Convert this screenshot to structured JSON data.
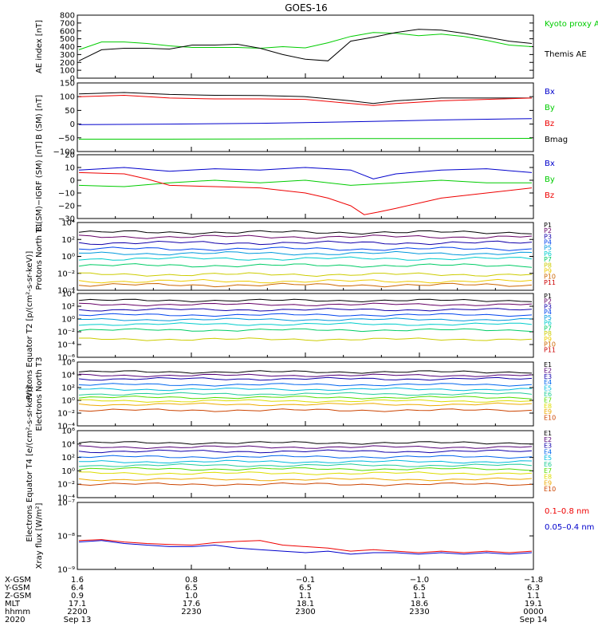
{
  "title": "GOES-16",
  "colors": {
    "black": "#000000",
    "red": "#ee0000",
    "green": "#00cc00",
    "blue": "#0000cc",
    "p": [
      "#000000",
      "#660066",
      "#1100aa",
      "#0044ee",
      "#0099dd",
      "#00cccc",
      "#00cc66",
      "#cccc00",
      "#eecc00",
      "#cc6600",
      "#cc0000"
    ],
    "e": [
      "#000000",
      "#550077",
      "#1100aa",
      "#0066ee",
      "#00bbdd",
      "#22cc99",
      "#55dd00",
      "#dddd00",
      "#eeaa00",
      "#cc4400",
      "#aa0000"
    ]
  },
  "chart_data": [
    {
      "type": "line",
      "ylabel": "AE index [nT]",
      "ylim": [
        0,
        800
      ],
      "yticks": [
        "800",
        "700",
        "600",
        "500",
        "400",
        "300",
        "200",
        "100",
        "0"
      ],
      "legend": [
        "Kyoto proxy AE",
        "Themis AE"
      ],
      "series": [
        {
          "name": "Kyoto proxy AE",
          "color": "green",
          "x": [
            0,
            0.05,
            0.1,
            0.15,
            0.2,
            0.25,
            0.3,
            0.35,
            0.4,
            0.45,
            0.5,
            0.55,
            0.6,
            0.65,
            0.7,
            0.75,
            0.8,
            0.85,
            0.9,
            0.95,
            1.0
          ],
          "y": [
            360,
            460,
            460,
            440,
            410,
            390,
            390,
            390,
            380,
            400,
            385,
            450,
            530,
            580,
            570,
            540,
            560,
            530,
            480,
            420,
            400
          ]
        },
        {
          "name": "Themis AE",
          "color": "black",
          "x": [
            0,
            0.05,
            0.1,
            0.15,
            0.2,
            0.25,
            0.3,
            0.35,
            0.4,
            0.45,
            0.5,
            0.55,
            0.6,
            0.65,
            0.7,
            0.75,
            0.8,
            0.85,
            0.9,
            0.95,
            1.0
          ],
          "y": [
            220,
            360,
            380,
            380,
            370,
            420,
            420,
            430,
            380,
            300,
            240,
            220,
            470,
            520,
            580,
            620,
            610,
            570,
            520,
            470,
            440
          ]
        }
      ]
    },
    {
      "type": "line",
      "ylabel": "B (SM) [nT]",
      "ylim": [
        -100,
        150
      ],
      "yticks": [
        "150",
        "100",
        "50",
        "0",
        "−50",
        "−100"
      ],
      "legend": [
        "Bx",
        "By",
        "Bz",
        "Bmag"
      ],
      "series": [
        {
          "name": "Bmag",
          "color": "black",
          "x": [
            0,
            0.1,
            0.2,
            0.3,
            0.4,
            0.5,
            0.6,
            0.65,
            0.7,
            0.8,
            0.9,
            1.0
          ],
          "y": [
            110,
            115,
            108,
            105,
            104,
            100,
            85,
            75,
            85,
            95,
            95,
            95
          ]
        },
        {
          "name": "Bz",
          "color": "red",
          "x": [
            0,
            0.1,
            0.2,
            0.3,
            0.4,
            0.5,
            0.6,
            0.65,
            0.7,
            0.8,
            0.9,
            1.0
          ],
          "y": [
            100,
            105,
            95,
            92,
            92,
            90,
            75,
            68,
            75,
            85,
            90,
            95
          ]
        },
        {
          "name": "Bx",
          "color": "blue",
          "x": [
            0,
            0.2,
            0.4,
            0.6,
            0.8,
            1.0
          ],
          "y": [
            -2,
            0,
            3,
            8,
            15,
            20
          ]
        },
        {
          "name": "By",
          "color": "green",
          "x": [
            0,
            0.2,
            0.4,
            0.6,
            0.8,
            1.0
          ],
          "y": [
            -55,
            -55,
            -54,
            -53,
            -53,
            -52
          ]
        }
      ]
    },
    {
      "type": "line",
      "ylabel": "B (SM)−IGRF (SM) [nT]",
      "ylim": [
        -30,
        20
      ],
      "yticks": [
        "20",
        "10",
        "0",
        "−10",
        "−20",
        "−30"
      ],
      "legend": [
        "Bx",
        "By",
        "Bz"
      ],
      "series": [
        {
          "name": "Bx",
          "color": "blue",
          "x": [
            0,
            0.1,
            0.2,
            0.3,
            0.4,
            0.5,
            0.6,
            0.65,
            0.7,
            0.8,
            0.9,
            1.0
          ],
          "y": [
            8,
            10,
            7,
            9,
            8,
            10,
            8,
            1,
            5,
            8,
            9,
            6
          ]
        },
        {
          "name": "By",
          "color": "green",
          "x": [
            0,
            0.1,
            0.2,
            0.3,
            0.4,
            0.5,
            0.6,
            0.7,
            0.8,
            0.9,
            1.0
          ],
          "y": [
            -4,
            -5,
            -2,
            0,
            -2,
            0,
            -4,
            -2,
            0,
            -2,
            -2
          ]
        },
        {
          "name": "Bz",
          "color": "red",
          "x": [
            0,
            0.1,
            0.15,
            0.2,
            0.3,
            0.4,
            0.5,
            0.55,
            0.6,
            0.63,
            0.66,
            0.7,
            0.8,
            0.9,
            1.0
          ],
          "y": [
            6,
            5,
            1,
            -4,
            -5,
            -6,
            -10,
            -14,
            -20,
            -27,
            -25,
            -22,
            -14,
            -10,
            -6
          ]
        }
      ]
    },
    {
      "type": "line",
      "log": true,
      "ylabel": "Protons North T1",
      "yticks": [
        "10⁴",
        "10²",
        "10⁰",
        "10⁻²",
        "10⁻⁴"
      ],
      "ylog": [
        -4.5,
        4.5
      ],
      "legend": [
        "P1",
        "P2",
        "P3",
        "P4",
        "P5",
        "P6",
        "P7",
        "P8",
        "P9",
        "P10",
        "P11"
      ],
      "levels": [
        3.2,
        2.6,
        1.8,
        1.0,
        0.4,
        -0.3,
        -1.2,
        -2.4,
        -3.3,
        -3.8,
        -5.0
      ]
    },
    {
      "type": "line",
      "log": true,
      "ylabel": "Protons Equator T2 [p/(cm²-s-sr-keV)]",
      "yticks": [
        "10⁴",
        "10²",
        "10⁰",
        "10⁻²",
        "10⁻⁴",
        "10⁻⁶"
      ],
      "ylog": [
        -6.5,
        4.5
      ],
      "legend": [
        "P1",
        "P2",
        "P3",
        "P4",
        "P5",
        "P6",
        "P7",
        "P8",
        "P9",
        "P10",
        "P11"
      ],
      "levels": [
        3.3,
        2.6,
        1.7,
        0.8,
        0.0,
        -0.8,
        -1.8,
        -3.4,
        -9,
        -9,
        -9
      ]
    },
    {
      "type": "line",
      "log": true,
      "ylabel": "Electrons North T3",
      "yticks": [
        "10⁶",
        "10⁴",
        "10²",
        "10⁰",
        "10⁻²",
        "10⁻⁴"
      ],
      "ylog": [
        -4.5,
        6.5
      ],
      "legend": [
        "E1",
        "E2",
        "E3",
        "E4",
        "E5",
        "E6",
        "E7",
        "E8",
        "E9",
        "E10"
      ],
      "levels": [
        4.8,
        4.2,
        3.6,
        2.6,
        1.8,
        1.0,
        0.4,
        -0.2,
        -0.8,
        -1.8
      ]
    },
    {
      "type": "line",
      "log": true,
      "ylabel": "Electrons Equator T4 [e/(cm²-s-sr-keV)]",
      "yticks": [
        "10⁶",
        "10⁴",
        "10²",
        "10⁰",
        "10⁻²",
        "10⁻⁴"
      ],
      "ylog": [
        -4.5,
        6.5
      ],
      "legend": [
        "E1",
        "E2",
        "E3",
        "E4",
        "E5",
        "E6",
        "E7",
        "E8",
        "E9",
        "E10"
      ],
      "levels": [
        4.5,
        3.8,
        3.1,
        2.2,
        1.4,
        0.8,
        0.2,
        -0.5,
        -1.5,
        -2.3
      ]
    },
    {
      "type": "line",
      "log": true,
      "ylabel": "Xray flux [W/m²]",
      "yticks": [
        "10⁻⁷",
        "10⁻⁸",
        "10⁻⁹"
      ],
      "ylog": [
        -9.1,
        -6.9
      ],
      "legend": [
        "0.1–0.8 nm",
        "0.05–0.4 nm"
      ],
      "series": [
        {
          "name": "0.1–0.8 nm",
          "color": "red",
          "x": [
            0,
            0.05,
            0.1,
            0.15,
            0.2,
            0.25,
            0.3,
            0.35,
            0.4,
            0.45,
            0.5,
            0.55,
            0.6,
            0.65,
            0.7,
            0.75,
            0.8,
            0.85,
            0.9,
            0.95,
            1.0
          ],
          "y": [
            -8.15,
            -8.12,
            -8.2,
            -8.25,
            -8.28,
            -8.3,
            -8.22,
            -8.18,
            -8.15,
            -8.3,
            -8.35,
            -8.4,
            -8.5,
            -8.45,
            -8.5,
            -8.55,
            -8.5,
            -8.55,
            -8.5,
            -8.55,
            -8.5
          ]
        },
        {
          "name": "0.05–0.4 nm",
          "color": "blue",
          "x": [
            0,
            0.05,
            0.1,
            0.15,
            0.2,
            0.25,
            0.3,
            0.35,
            0.4,
            0.45,
            0.5,
            0.55,
            0.6,
            0.65,
            0.7,
            0.75,
            0.8,
            0.85,
            0.9,
            0.95,
            1.0
          ],
          "y": [
            -8.2,
            -8.15,
            -8.25,
            -8.3,
            -8.35,
            -8.35,
            -8.3,
            -8.4,
            -8.45,
            -8.5,
            -8.55,
            -8.5,
            -8.6,
            -8.55,
            -8.55,
            -8.6,
            -8.55,
            -8.6,
            -8.55,
            -8.6,
            -8.55
          ]
        }
      ]
    }
  ],
  "orbit_rows": {
    "labels": [
      "X-GSM",
      "Y-GSM",
      "Z-GSM",
      "MLT",
      "hhmm",
      "2020"
    ],
    "columns": [
      [
        "1.6",
        "6.4",
        "0.9",
        "17.1",
        "2200",
        "Sep 13"
      ],
      [
        "0.8",
        "6.5",
        "1.0",
        "17.6",
        "2230",
        ""
      ],
      [
        "−0.1",
        "6.5",
        "1.1",
        "18.1",
        "2300",
        ""
      ],
      [
        "−1.0",
        "6.5",
        "1.1",
        "18.6",
        "2330",
        ""
      ],
      [
        "−1.8",
        "6.3",
        "1.1",
        "19.1",
        "0000",
        "Sep 14"
      ]
    ]
  }
}
